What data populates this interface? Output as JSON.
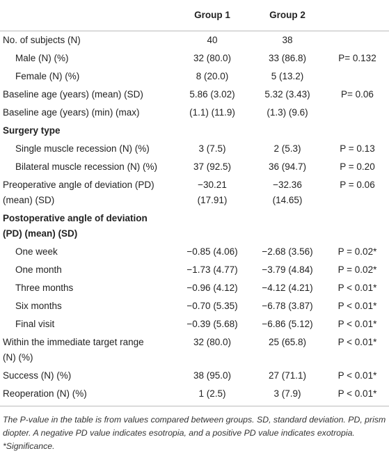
{
  "table": {
    "header": [
      "",
      "Group 1",
      "Group 2",
      ""
    ],
    "rows": [
      {
        "label": "No. of subjects (N)",
        "cells": [
          "40",
          "38",
          ""
        ]
      },
      {
        "label": "Male (N) (%)",
        "indent": true,
        "cells": [
          "32 (80.0)",
          "33 (86.8)",
          "P= 0.132"
        ]
      },
      {
        "label": "Female (N) (%)",
        "indent": true,
        "cells": [
          "8 (20.0)",
          "5 (13.2)",
          ""
        ]
      },
      {
        "label": "Baseline age (years) (mean) (SD)",
        "cells": [
          "5.86 (3.02)",
          "5.32 (3.43)",
          "P= 0.06"
        ]
      },
      {
        "label": "Baseline age (years) (min) (max)",
        "cells": [
          "(1.1) (11.9)",
          "(1.3) (9.6)",
          ""
        ]
      },
      {
        "label": "Surgery type",
        "bold": true,
        "cells": [
          "",
          "",
          ""
        ]
      },
      {
        "label": "Single muscle recession (N) (%)",
        "indent": true,
        "cells": [
          "3 (7.5)",
          "2 (5.3)",
          "P = 0.13"
        ]
      },
      {
        "label": "Bilateral muscle recession (N) (%)",
        "indent": true,
        "cells": [
          "37 (92.5)",
          "36 (94.7)",
          "P = 0.20"
        ]
      },
      {
        "label": [
          "Preoperative angle of deviation (PD)",
          "(mean) (SD)"
        ],
        "cells": [
          [
            "−30.21",
            "(17.91)"
          ],
          [
            "−32.36",
            "(14.65)"
          ],
          "P = 0.06"
        ]
      },
      {
        "label": [
          "Postoperative angle of deviation",
          "(PD) (mean) (SD)"
        ],
        "bold": true,
        "cells": [
          "",
          "",
          ""
        ]
      },
      {
        "label": "One week",
        "indent": true,
        "cells": [
          "−0.85 (4.06)",
          "−2.68 (3.56)",
          "P = 0.02*"
        ]
      },
      {
        "label": "One month",
        "indent": true,
        "cells": [
          "−1.73 (4.77)",
          "−3.79 (4.84)",
          "P = 0.02*"
        ]
      },
      {
        "label": "Three months",
        "indent": true,
        "cells": [
          "−0.96 (4.12)",
          "−4.12 (4.21)",
          "P < 0.01*"
        ]
      },
      {
        "label": "Six months",
        "indent": true,
        "cells": [
          "−0.70 (5.35)",
          "−6.78 (3.87)",
          "P < 0.01*"
        ]
      },
      {
        "label": "Final visit",
        "indent": true,
        "cells": [
          "−0.39 (5.68)",
          "−6.86 (5.12)",
          "P < 0.01*"
        ]
      },
      {
        "label": [
          "Within the immediate target range",
          "(N) (%)"
        ],
        "cells": [
          "32 (80.0)",
          "25 (65.8)",
          "P < 0.01*"
        ]
      },
      {
        "label": "Success (N) (%)",
        "cells": [
          "38 (95.0)",
          "27 (71.1)",
          "P < 0.01*"
        ]
      },
      {
        "label": "Reoperation (N) (%)",
        "cells": [
          "1 (2.5)",
          "3 (7.9)",
          "P < 0.01*"
        ]
      }
    ]
  },
  "footnote": "The P-value in the table is from values compared between groups. SD, standard deviation. PD, prism diopter. A negative PD value indicates esotropia, and a positive PD value indicates exotropia. *Significance."
}
